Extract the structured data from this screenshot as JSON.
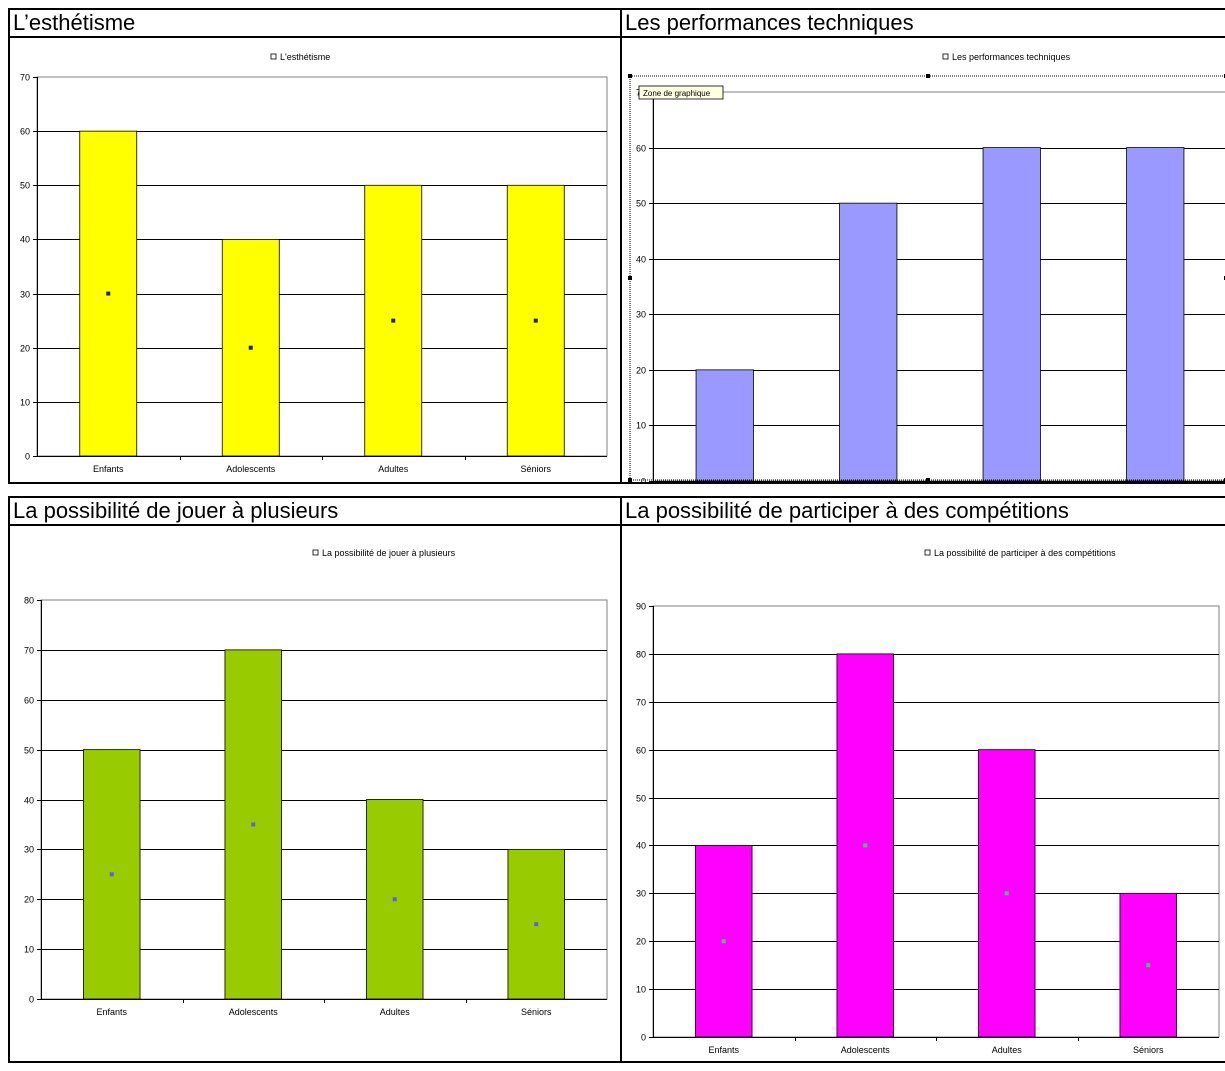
{
  "tooltip": "Zone de graphique",
  "chart_data": [
    {
      "type": "bar",
      "title": "L’esthétisme",
      "categories": [
        "Enfants",
        "Adolescents",
        "Adultes",
        "Séniors"
      ],
      "series": [
        {
          "name": "L'esthétisme",
          "values": [
            60,
            40,
            50,
            50
          ]
        }
      ],
      "midpoints": [
        30,
        20,
        25,
        25
      ],
      "ylim": [
        0,
        70
      ],
      "yticks": [
        0,
        10,
        20,
        30,
        40,
        50,
        60,
        70
      ],
      "grid": true,
      "legend": "top",
      "colors": {
        "bar": "#ffff00",
        "marker": "#1f1f9f"
      }
    },
    {
      "type": "bar",
      "title": "Les performances techniques",
      "categories": [
        "",
        "",
        "",
        ""
      ],
      "series": [
        {
          "name": "Les performances techniques",
          "values": [
            20,
            50,
            60,
            60
          ]
        }
      ],
      "midpoints": [],
      "ylim": [
        0,
        70
      ],
      "yticks": [
        0,
        10,
        20,
        30,
        40,
        50,
        60,
        70
      ],
      "grid": true,
      "legend": "top",
      "selected": true,
      "colors": {
        "bar": "#9999ff",
        "marker": "#1f1f9f"
      }
    },
    {
      "type": "bar",
      "title": "La possibilité de jouer à plusieurs",
      "categories": [
        "Enfants",
        "Adolescents",
        "Adultes",
        "Séniors"
      ],
      "series": [
        {
          "name": "La possibilité de jouer à plusieurs",
          "values": [
            50,
            70,
            40,
            30
          ]
        }
      ],
      "midpoints": [
        25,
        35,
        20,
        15
      ],
      "ylim": [
        0,
        80
      ],
      "yticks": [
        0,
        10,
        20,
        30,
        40,
        50,
        60,
        70,
        80
      ],
      "grid": true,
      "legend": "top",
      "colors": {
        "bar": "#99cc00",
        "marker": "#5a5aff"
      }
    },
    {
      "type": "bar",
      "title": "La possibilité de participer à des compétitions",
      "categories": [
        "Enfants",
        "Adolescents",
        "Adultes",
        "Séniors"
      ],
      "series": [
        {
          "name": "La possibilité de participer à des compétitions",
          "values": [
            40,
            80,
            60,
            30
          ]
        }
      ],
      "midpoints": [
        20,
        40,
        30,
        15
      ],
      "ylim": [
        0,
        90
      ],
      "yticks": [
        0,
        10,
        20,
        30,
        40,
        50,
        60,
        70,
        80,
        90
      ],
      "grid": true,
      "legend": "top",
      "colors": {
        "bar": "#ff00ff",
        "marker": "#33cc66"
      }
    }
  ]
}
